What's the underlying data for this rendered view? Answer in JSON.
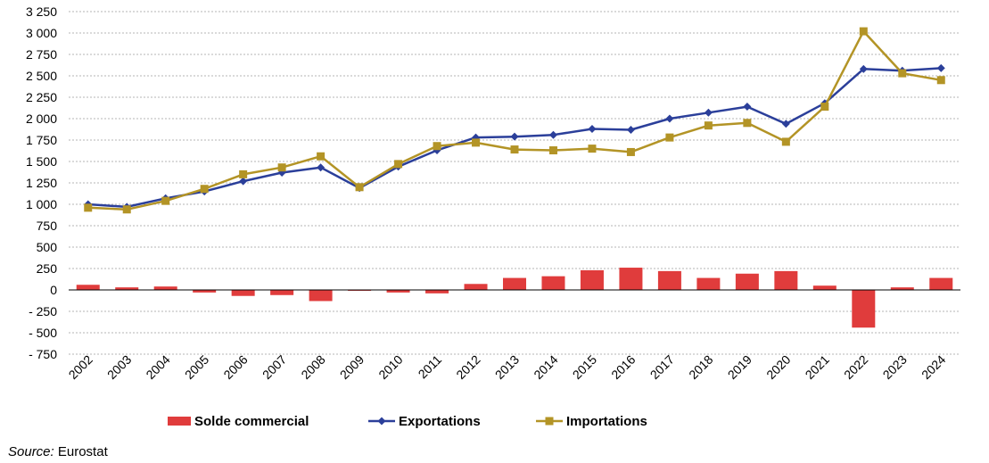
{
  "chart_data": {
    "type": "bar+line",
    "categories": [
      "2002",
      "2003",
      "2004",
      "2005",
      "2006",
      "2007",
      "2008",
      "2009",
      "2010",
      "2011",
      "2012",
      "2013",
      "2014",
      "2015",
      "2016",
      "2017",
      "2018",
      "2019",
      "2020",
      "2021",
      "2022",
      "2023",
      "2024"
    ],
    "series": [
      {
        "name": "Solde commercial",
        "kind": "bar",
        "color": "#e03c3c",
        "values": [
          60,
          30,
          40,
          -30,
          -70,
          -60,
          -130,
          -10,
          -30,
          -40,
          70,
          140,
          160,
          230,
          260,
          220,
          140,
          190,
          220,
          50,
          -440,
          30,
          140
        ]
      },
      {
        "name": "Exportations",
        "kind": "line",
        "marker": "diamond",
        "color": "#2b3f9a",
        "values": [
          1000,
          970,
          1070,
          1150,
          1270,
          1370,
          1430,
          1190,
          1440,
          1630,
          1780,
          1790,
          1810,
          1880,
          1870,
          2000,
          2070,
          2140,
          1940,
          2180,
          2580,
          2560,
          2590
        ]
      },
      {
        "name": "Importations",
        "kind": "line",
        "marker": "square",
        "color": "#b39426",
        "values": [
          960,
          940,
          1040,
          1180,
          1350,
          1430,
          1560,
          1200,
          1470,
          1680,
          1720,
          1640,
          1630,
          1650,
          1610,
          1780,
          1920,
          1950,
          1730,
          2140,
          3020,
          2530,
          2450
        ]
      }
    ],
    "ylim": [
      -750,
      3250
    ],
    "yticks": [
      3250,
      3000,
      2750,
      2500,
      2250,
      2000,
      1750,
      1500,
      1250,
      1000,
      750,
      500,
      250,
      0,
      -250,
      -500,
      -750
    ],
    "ytick_labels": [
      "3 250",
      "3 000",
      "2 750",
      "2 500",
      "2 250",
      "2 000",
      "1 750",
      "1 500",
      "1 250",
      "1 000",
      "750",
      "500",
      "250",
      "0",
      "- 250",
      "- 500",
      "- 750"
    ],
    "grid": true,
    "legend_position": "bottom"
  },
  "source": {
    "label": "Source:",
    "value": "Eurostat"
  }
}
